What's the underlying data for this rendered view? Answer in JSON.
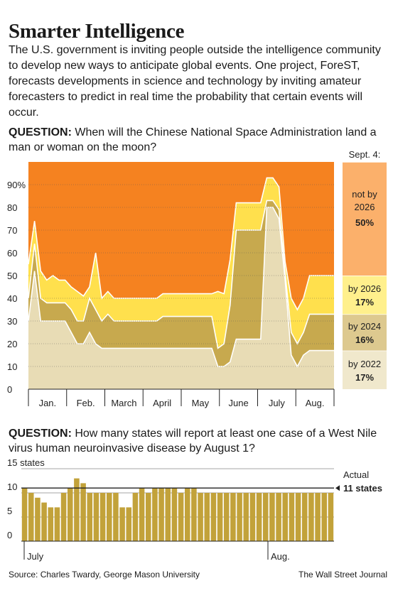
{
  "title": "Smarter Intelligence",
  "intro": "The U.S. government is inviting people outside the intelligence community to develop new ways to anticipate global events. One project, ForeST, forecasts developments in science and technology by inviting amateur forecasters to predict in real time the probability that certain events will occur.",
  "question1": {
    "label": "QUESTION:",
    "text": " When will the Chinese National Space Administration land a man or woman on the moon?"
  },
  "question2": {
    "label": "QUESTION:",
    "text": " How many states will report at least one case of a West Nile virus human neuroinvasive disease by August 1?"
  },
  "source": "Source: Charles Twardy, George Mason University",
  "credit": "The Wall Street Journal",
  "colors": {
    "not_by_2026": "#f58220",
    "by_2026": "#ffe04d",
    "by_2024": "#c7a94e",
    "by_2022": "#e8dcb5",
    "bar": "#c2a23a",
    "panel_not": "#fbb06b",
    "panel_2026": "#fff08c",
    "panel_2024": "#ddc98f",
    "panel_2022": "#f0e8cc"
  },
  "chart_data": [
    {
      "type": "area",
      "stacked": true,
      "ylim": [
        0,
        100
      ],
      "y_ticks": [
        "0",
        "10",
        "20",
        "30",
        "40",
        "50",
        "60",
        "70",
        "80",
        "90%"
      ],
      "months": [
        "Jan.",
        "Feb.",
        "March",
        "April",
        "May",
        "June",
        "July",
        "Aug."
      ],
      "panel_header": "Sept. 4:",
      "x": [
        0,
        2,
        4,
        6,
        8,
        10,
        12,
        14,
        16,
        18,
        20,
        22,
        24,
        26,
        28,
        30,
        32,
        34,
        36,
        38,
        40,
        42,
        44,
        46,
        48,
        50,
        52,
        54,
        56,
        58,
        60,
        62,
        64,
        66,
        68,
        70,
        72,
        74,
        76,
        78,
        80,
        82,
        84,
        86,
        88,
        90,
        92,
        94,
        96,
        98,
        100
      ],
      "series": [
        {
          "name": "by 2022",
          "label": "by 2022",
          "final": "17%",
          "values": [
            30,
            52,
            30,
            30,
            30,
            30,
            30,
            25,
            20,
            20,
            25,
            20,
            18,
            18,
            18,
            18,
            18,
            18,
            18,
            18,
            18,
            18,
            18,
            18,
            18,
            18,
            18,
            18,
            18,
            18,
            18,
            10,
            10,
            12,
            22,
            22,
            22,
            22,
            22,
            80,
            80,
            75,
            48,
            15,
            10,
            15,
            17,
            17,
            17,
            17,
            17
          ]
        },
        {
          "name": "by 2024",
          "label": "by 2024",
          "final": "16%",
          "values": [
            10,
            12,
            10,
            8,
            8,
            8,
            8,
            10,
            10,
            10,
            15,
            15,
            12,
            15,
            12,
            12,
            12,
            12,
            12,
            12,
            12,
            12,
            14,
            14,
            14,
            14,
            14,
            14,
            14,
            14,
            14,
            8,
            10,
            25,
            48,
            48,
            48,
            48,
            48,
            3,
            3,
            4,
            3,
            10,
            10,
            10,
            16,
            16,
            16,
            16,
            16
          ]
        },
        {
          "name": "by 2026",
          "label": "by 2026",
          "final": "17%",
          "values": [
            15,
            10,
            12,
            10,
            12,
            10,
            10,
            10,
            13,
            11,
            5,
            25,
            10,
            10,
            10,
            10,
            10,
            10,
            10,
            10,
            10,
            10,
            10,
            10,
            10,
            10,
            10,
            10,
            10,
            10,
            10,
            25,
            22,
            20,
            12,
            12,
            12,
            12,
            12,
            10,
            10,
            10,
            5,
            15,
            15,
            15,
            17,
            17,
            17,
            17,
            17
          ]
        },
        {
          "name": "not by 2026",
          "label": "not by 2026",
          "final": "50%",
          "values": [
            45,
            26,
            48,
            52,
            50,
            52,
            52,
            55,
            57,
            59,
            55,
            40,
            60,
            57,
            60,
            60,
            60,
            60,
            60,
            60,
            60,
            60,
            58,
            58,
            58,
            58,
            58,
            58,
            58,
            58,
            58,
            57,
            58,
            43,
            18,
            18,
            18,
            18,
            18,
            7,
            7,
            11,
            44,
            60,
            65,
            60,
            50,
            50,
            50,
            50,
            50
          ]
        }
      ]
    },
    {
      "type": "bar",
      "ylim": [
        0,
        15
      ],
      "y_ticks": [
        "0",
        "5",
        "10",
        "15 states"
      ],
      "x_labels": [
        "July",
        "Aug."
      ],
      "reference_value": 11,
      "reference_label_1": "Actual",
      "reference_label_2": "11 states",
      "values": [
        11,
        10,
        9,
        8,
        7,
        7,
        10,
        11,
        13,
        12,
        10,
        10,
        10,
        10,
        10,
        7,
        7,
        10,
        11,
        10,
        11,
        11,
        11,
        11,
        10,
        11,
        11,
        10,
        10,
        10,
        10,
        10,
        10,
        10,
        10,
        10,
        10,
        10,
        10,
        10,
        10,
        10,
        10,
        10,
        10,
        10,
        10,
        10
      ]
    }
  ]
}
